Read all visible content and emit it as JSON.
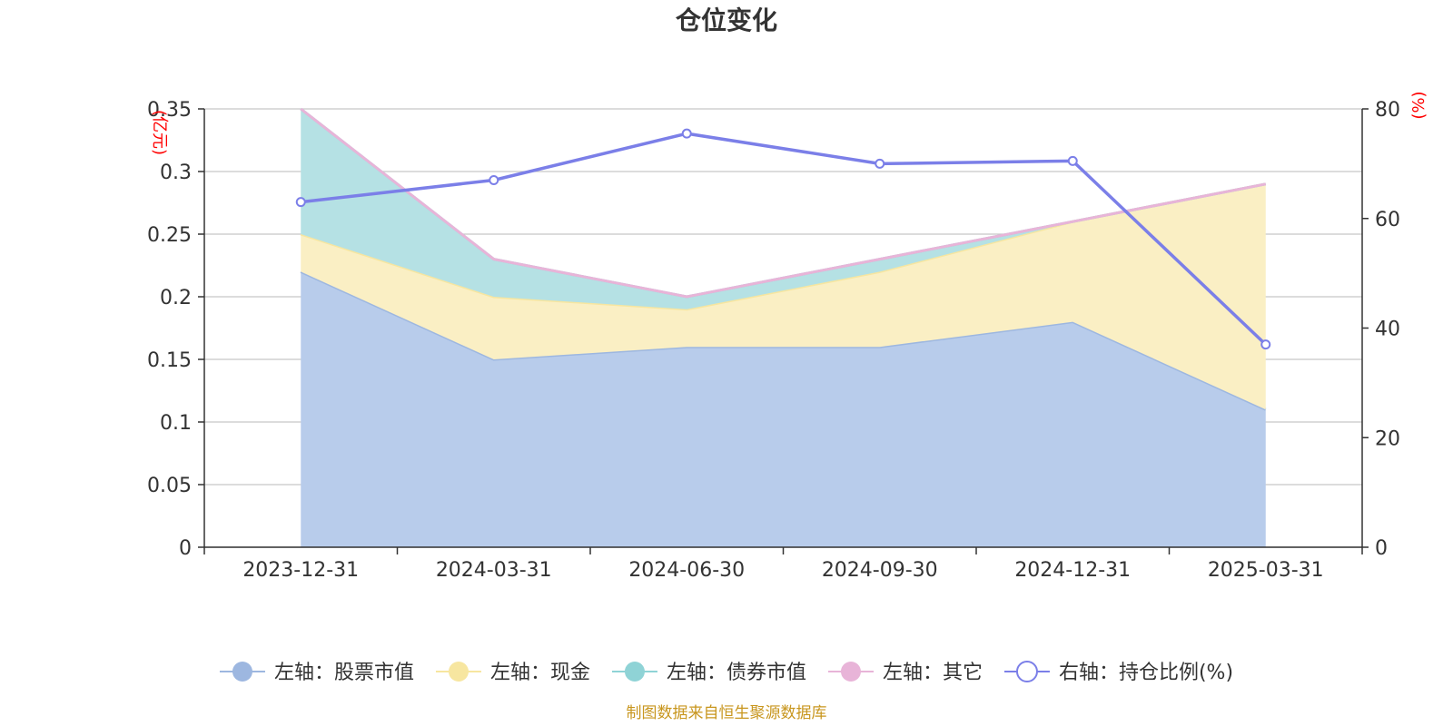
{
  "chart_data": {
    "type": "area",
    "title": "仓位变化",
    "categories": [
      "2023-12-31",
      "2024-03-31",
      "2024-06-30",
      "2024-09-30",
      "2024-12-31",
      "2025-03-31"
    ],
    "left_axis": {
      "unit": "(亿元)",
      "ylim": [
        0,
        0.35
      ],
      "ticks": [
        "0",
        "0.05",
        "0.1",
        "0.15",
        "0.2",
        "0.25",
        "0.3",
        "0.35"
      ]
    },
    "right_axis": {
      "unit": "(%)",
      "ylim": [
        0,
        80
      ],
      "ticks": [
        "0",
        "20",
        "40",
        "60",
        "80"
      ]
    },
    "stacked_series": [
      {
        "name": "左轴：股票市值",
        "color": "#9db7e0",
        "fill": "#b8cceb",
        "values": [
          0.22,
          0.15,
          0.16,
          0.16,
          0.18,
          0.11
        ]
      },
      {
        "name": "左轴：现金",
        "color": "#f7e6a0",
        "fill": "#faefc4",
        "values": [
          0.03,
          0.05,
          0.03,
          0.06,
          0.08,
          0.18
        ]
      },
      {
        "name": "左轴：债券市值",
        "color": "#8fd3d6",
        "fill": "#b5e1e4",
        "values": [
          0.1,
          0.03,
          0.01,
          0.01,
          0,
          0
        ]
      },
      {
        "name": "左轴：其它",
        "color": "#e8b4d8",
        "fill": "#f0cde6",
        "values": [
          0,
          0,
          0,
          0,
          0,
          0
        ]
      }
    ],
    "line_series": {
      "name": "右轴：持仓比例(%)",
      "color": "#7b7fe8",
      "axis": "right",
      "values": [
        63,
        67,
        75.5,
        70,
        70.5,
        37
      ]
    },
    "grid": true,
    "legend_position": "bottom"
  },
  "source_note": "制图数据来自恒生聚源数据库"
}
